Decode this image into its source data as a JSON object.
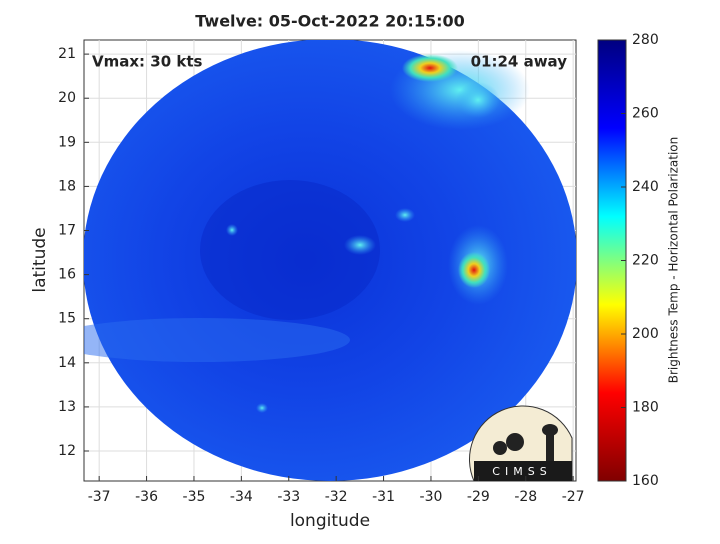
{
  "chart_data": {
    "type": "map",
    "title": "Twelve: 05-Oct-2022 20:15:00",
    "xlabel": "longitude",
    "ylabel": "latitude",
    "xlim": [
      -37.32,
      -26.94
    ],
    "ylim": [
      11.32,
      21.32
    ],
    "xticks": [
      -37,
      -36,
      -35,
      -34,
      -33,
      -32,
      -31,
      -30,
      -29,
      -28,
      -27
    ],
    "yticks": [
      12,
      13,
      14,
      15,
      16,
      17,
      18,
      19,
      20,
      21
    ],
    "grid": true,
    "annotations": [
      "Vmax: 30 kts",
      "01:24 away"
    ],
    "colorbar": {
      "label": "Brightness Temp - Horizontal Polarization",
      "lim": [
        160,
        280
      ],
      "ticks": [
        160,
        180,
        200,
        220,
        240,
        260,
        280
      ],
      "colormap": "jet"
    },
    "logo": "CIMSS"
  }
}
